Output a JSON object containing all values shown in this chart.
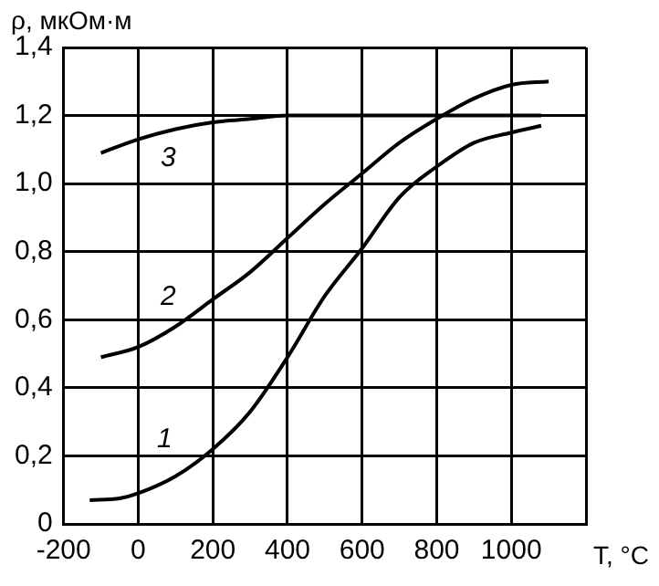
{
  "chart_data": {
    "type": "line",
    "xlabel": "T, °C",
    "ylabel": "ρ, мкОм·м",
    "xlim": [
      -200,
      1200
    ],
    "xticks": [
      -200,
      0,
      200,
      400,
      600,
      800,
      1000,
      {
        "value": 1200,
        "label": null
      }
    ],
    "ylim": [
      0,
      1.4
    ],
    "yticks": [
      0,
      {
        "value": 0.2,
        "label": "0,2"
      },
      {
        "value": 0.4,
        "label": "0,4"
      },
      {
        "value": 0.6,
        "label": "0,6"
      },
      {
        "value": 0.8,
        "label": "0,8"
      },
      {
        "value": 1.0,
        "label": "1,0"
      },
      {
        "value": 1.2,
        "label": "1,2"
      },
      {
        "value": 1.4,
        "label": "1,4"
      }
    ],
    "grid": true,
    "legend": false,
    "marker": "none",
    "line_style": "solid",
    "series": [
      {
        "name": "1",
        "color": "#000000",
        "x": [
          -130,
          -50,
          0,
          100,
          200,
          300,
          400,
          500,
          600,
          700,
          800,
          900,
          1000,
          1080
        ],
        "values": [
          0.07,
          0.075,
          0.09,
          0.14,
          0.22,
          0.33,
          0.49,
          0.67,
          0.81,
          0.96,
          1.05,
          1.12,
          1.15,
          1.17
        ]
      },
      {
        "name": "2",
        "color": "#000000",
        "x": [
          -100,
          0,
          100,
          200,
          300,
          400,
          500,
          600,
          700,
          800,
          900,
          1000,
          1100
        ],
        "values": [
          0.49,
          0.52,
          0.58,
          0.66,
          0.74,
          0.84,
          0.94,
          1.03,
          1.12,
          1.19,
          1.25,
          1.29,
          1.3
        ]
      },
      {
        "name": "3",
        "color": "#000000",
        "x": [
          -100,
          0,
          100,
          200,
          300,
          400,
          600,
          800,
          1000,
          1080
        ],
        "values": [
          1.09,
          1.13,
          1.16,
          1.18,
          1.19,
          1.2,
          1.2,
          1.2,
          1.2,
          1.2
        ]
      }
    ]
  }
}
